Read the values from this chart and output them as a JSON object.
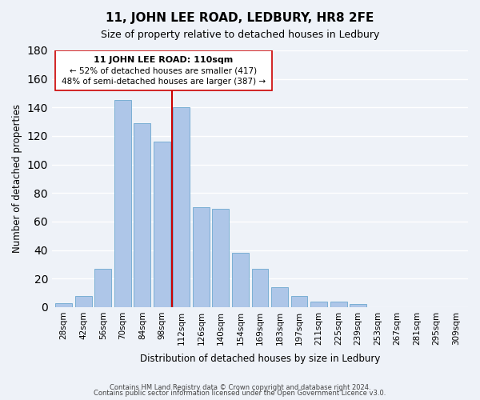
{
  "title": "11, JOHN LEE ROAD, LEDBURY, HR8 2FE",
  "subtitle": "Size of property relative to detached houses in Ledbury",
  "xlabel": "Distribution of detached houses by size in Ledbury",
  "ylabel": "Number of detached properties",
  "bar_labels": [
    "28sqm",
    "42sqm",
    "56sqm",
    "70sqm",
    "84sqm",
    "98sqm",
    "112sqm",
    "126sqm",
    "140sqm",
    "154sqm",
    "169sqm",
    "183sqm",
    "197sqm",
    "211sqm",
    "225sqm",
    "239sqm",
    "253sqm",
    "267sqm",
    "281sqm",
    "295sqm",
    "309sqm"
  ],
  "bar_values": [
    3,
    8,
    27,
    145,
    129,
    116,
    140,
    70,
    69,
    38,
    27,
    14,
    8,
    4,
    4,
    2,
    0,
    0,
    0,
    0,
    0
  ],
  "bar_color": "#aec6e8",
  "bar_edge_color": "#7aafd4",
  "vline_color": "#cc0000",
  "annotation_title": "11 JOHN LEE ROAD: 110sqm",
  "annotation_line1": "← 52% of detached houses are smaller (417)",
  "annotation_line2": "48% of semi-detached houses are larger (387) →",
  "annotation_box_color": "#ffffff",
  "annotation_box_edge": "#cc0000",
  "ylim": [
    0,
    180
  ],
  "footer1": "Contains HM Land Registry data © Crown copyright and database right 2024.",
  "footer2": "Contains public sector information licensed under the Open Government Licence v3.0.",
  "background_color": "#eef2f8"
}
